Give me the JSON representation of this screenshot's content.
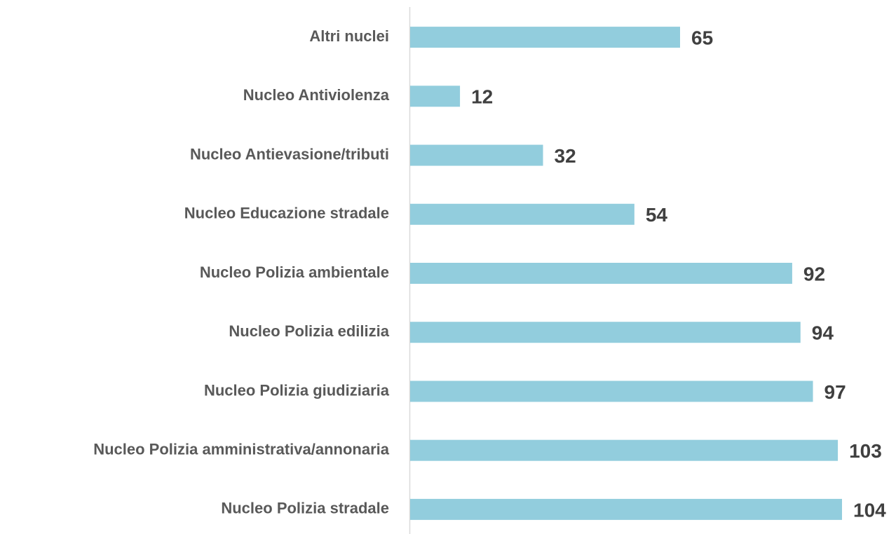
{
  "chart_data": {
    "type": "barh",
    "categories": [
      "Altri nuclei",
      "Nucleo Antiviolenza",
      "Nucleo Antievasione/tributi",
      "Nucleo Educazione stradale",
      "Nucleo Polizia ambientale",
      "Nucleo Polizia edilizia",
      "Nucleo Polizia giudiziaria",
      "Nucleo Polizia amministrativa/annonaria",
      "Nucleo Polizia stradale"
    ],
    "values": [
      65,
      12,
      32,
      54,
      92,
      94,
      97,
      103,
      104
    ],
    "color": "#92cddd"
  }
}
